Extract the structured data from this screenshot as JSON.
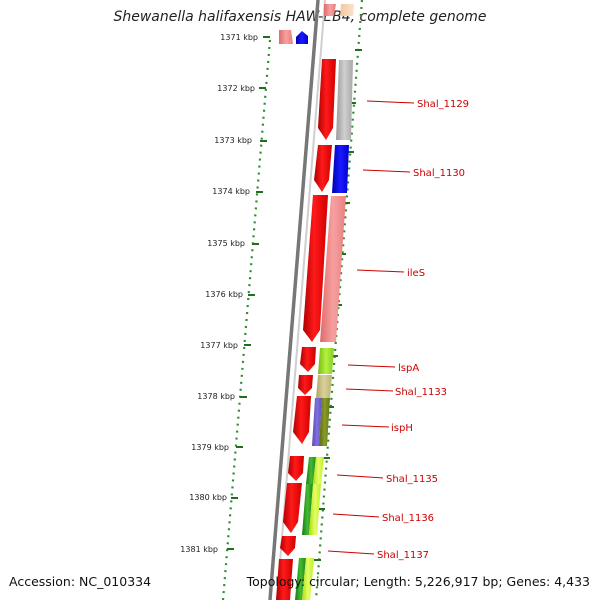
{
  "title": "Shewanella halifaxensis HAW-EB4, complete genome",
  "accession": "Accession: NC_010334",
  "topology": "Topology: circular; Length: 5,226,917 bp; Genes: 4,433",
  "scale": {
    "unit": "kbp",
    "ticks": [
      {
        "label": "1371 kbp"
      },
      {
        "label": "1372 kbp"
      },
      {
        "label": "1373 kbp"
      },
      {
        "label": "1374 kbp"
      },
      {
        "label": "1375 kbp"
      },
      {
        "label": "1376 kbp"
      },
      {
        "label": "1377 kbp"
      },
      {
        "label": "1378 kbp"
      },
      {
        "label": "1379 kbp"
      },
      {
        "label": "1380 kbp"
      },
      {
        "label": "1381 kbp"
      }
    ]
  },
  "genes": [
    {
      "label": "Shal_1129"
    },
    {
      "label": "Shal_1130"
    },
    {
      "label": "ileS"
    },
    {
      "label": "lspA"
    },
    {
      "label": "Shal_1133"
    },
    {
      "label": "ispH"
    },
    {
      "label": "Shal_1135"
    },
    {
      "label": "Shal_1136"
    },
    {
      "label": "Shal_1137"
    }
  ],
  "colors": {
    "strand_arrow": "#ee0000",
    "backbone": "#888888",
    "ruler_dots": "#2e8b2e",
    "label_text": "#cc0000",
    "gray_feature": "#b8b8b8",
    "blue_feature": "#0000ee",
    "pink_feature": "#f09090",
    "lime_feature": "#99dd33",
    "khaki_feature": "#c8c080",
    "olive_feature": "#778822",
    "green_feature": "#33aa22",
    "yellowgreen_feature": "#ccff33"
  }
}
